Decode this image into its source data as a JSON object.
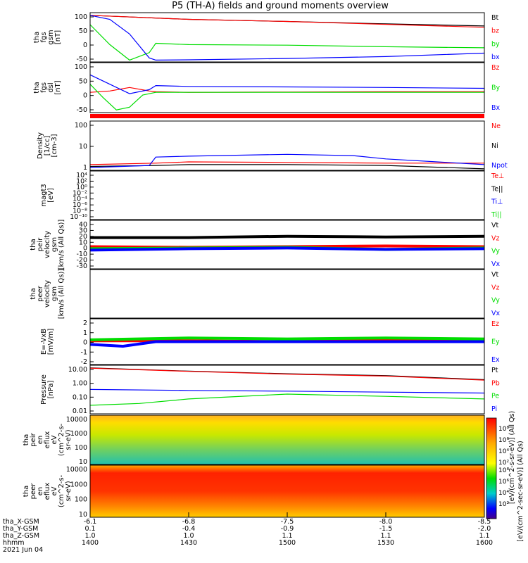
{
  "title": "P5 (TH-A) fields and ground moments overview",
  "colors": {
    "black": "#000000",
    "red": "#ff0000",
    "green": "#00dd00",
    "blue": "#0000ff"
  },
  "panels": [
    {
      "id": "fgs-gsm",
      "ylabel": [
        "tha",
        "fgs",
        "gsm",
        "[nT]"
      ],
      "yticks": [
        "100",
        "50",
        "0",
        "-50"
      ],
      "legend": [
        {
          "text": "Bt",
          "color": "black"
        },
        {
          "text": "bz",
          "color": "red"
        },
        {
          "text": "by",
          "color": "green"
        },
        {
          "text": "bx",
          "color": "blue"
        }
      ]
    },
    {
      "id": "fgs-dsl",
      "ylabel": [
        "tha",
        "fgs",
        "dsl",
        "[nT]"
      ],
      "yticks": [
        "100",
        "50",
        "0",
        "-50"
      ],
      "legend": [
        {
          "text": "Bz",
          "color": "red"
        },
        {
          "text": "By",
          "color": "green"
        },
        {
          "text": "Bx",
          "color": "blue"
        }
      ]
    },
    {
      "id": "density",
      "ylabel": [
        "Density",
        "[1/cc]",
        "[cm-3]"
      ],
      "yticks": [
        "100",
        "10",
        "1"
      ],
      "legend": [
        {
          "text": "Ne",
          "color": "red"
        },
        {
          "text": "Ni",
          "color": "black"
        },
        {
          "text": "Npot",
          "color": "blue"
        }
      ]
    },
    {
      "id": "temperature",
      "ylabel": [
        "magt3",
        "[eV]"
      ],
      "yticks": [
        "10⁴",
        "10²",
        "10⁰",
        "10⁻²",
        "10⁻⁴",
        "10⁻⁶",
        "10⁻⁸",
        "10⁻¹⁰"
      ],
      "legend": [
        {
          "text": "Te⊥",
          "color": "red"
        },
        {
          "text": "Te||",
          "color": "black"
        },
        {
          "text": "Ti⊥",
          "color": "blue"
        },
        {
          "text": "Ti||",
          "color": "green"
        }
      ]
    },
    {
      "id": "peir-velocity",
      "ylabel": [
        "tha",
        "peir",
        "velocity",
        "gsm",
        "[km/s (All Qs)]"
      ],
      "yticks": [
        "40",
        "30",
        "20",
        "10",
        "0",
        "-10",
        "-20",
        "-30"
      ],
      "legend": [
        {
          "text": "Vt",
          "color": "black"
        },
        {
          "text": "Vz",
          "color": "red"
        },
        {
          "text": "Vy",
          "color": "green"
        },
        {
          "text": "Vx",
          "color": "blue"
        }
      ]
    },
    {
      "id": "peer-velocity",
      "ylabel": [
        "tha",
        "peer",
        "velocity",
        "gsm",
        "[km/s (All Qs)]"
      ],
      "yticks": [],
      "legend": [
        {
          "text": "Vt",
          "color": "black"
        },
        {
          "text": "Vz",
          "color": "red"
        },
        {
          "text": "Vy",
          "color": "green"
        },
        {
          "text": "Vx",
          "color": "blue"
        }
      ]
    },
    {
      "id": "efield",
      "ylabel": [
        "E=-VxB",
        "[mV/m]"
      ],
      "yticks": [
        "2",
        "1",
        "0",
        "-1",
        "-2"
      ],
      "legend": [
        {
          "text": "Ez",
          "color": "red"
        },
        {
          "text": "Ey",
          "color": "green"
        },
        {
          "text": "Ex",
          "color": "blue"
        }
      ]
    },
    {
      "id": "pressure",
      "ylabel": [
        "Pressure",
        "[nPa]"
      ],
      "yticks": [
        "10.00",
        "1.00",
        "0.10",
        "0.01"
      ],
      "legend": [
        {
          "text": "Pt",
          "color": "black"
        },
        {
          "text": "Pb",
          "color": "red"
        },
        {
          "text": "Pe",
          "color": "green"
        },
        {
          "text": "Pi",
          "color": "blue"
        }
      ]
    },
    {
      "id": "peir-eflux",
      "ylabel": [
        "tha",
        "peir",
        "en",
        "eflux",
        "eV",
        "(cm^2-s-",
        "sr-eV)"
      ],
      "yticks": [
        "10000",
        "1000",
        "100",
        "10"
      ],
      "legend": []
    },
    {
      "id": "peer-eflux",
      "ylabel": [
        "tha",
        "peer",
        "en",
        "eflux",
        "eV",
        "(cm^2-s-",
        "sr-eV)"
      ],
      "yticks": [
        "10000",
        "1000",
        "100",
        "10"
      ],
      "legend": []
    }
  ],
  "colorbar": {
    "ticks": [
      "10⁸",
      "10⁶",
      "10⁴",
      "10²"
    ],
    "label_ion": "[eV/(cm^2-sec-sr-eV)] (All Qs)",
    "label_el": "[eV/(cm^2-s-sr-eV)] (All Qs)"
  },
  "footer": {
    "row_labels": [
      "tha_X-GSM",
      "tha_Y-GSM",
      "tha_Z-GSM",
      "hhmm",
      "2021 Jun 04"
    ],
    "columns": [
      {
        "x": "-6.1",
        "y": "0.1",
        "z": "1.0",
        "hhmm": "1400"
      },
      {
        "x": "-6.8",
        "y": "-0.4",
        "z": "1.0",
        "hhmm": "1430"
      },
      {
        "x": "-7.5",
        "y": "-0.9",
        "z": "1.1",
        "hhmm": "1500"
      },
      {
        "x": "-8.0",
        "y": "-1.5",
        "z": "1.1",
        "hhmm": "1530"
      },
      {
        "x": "-8.5",
        "y": "-2.0",
        "z": "1.1",
        "hhmm": "1600"
      }
    ]
  },
  "chart_data": {
    "type": "line",
    "title": "P5 (TH-A) fields and ground moments overview",
    "x": [
      "1400",
      "1430",
      "1500",
      "1530",
      "1600"
    ],
    "series": [
      {
        "name": "Bt",
        "panel": "fgs-gsm",
        "x": [
          1400,
          1410,
          1420,
          1430,
          1500,
          1530,
          1600
        ],
        "values": [
          100,
          95,
          90,
          85,
          77,
          68,
          60
        ],
        "ylim": [
          -75,
          110
        ]
      },
      {
        "name": "bz",
        "panel": "fgs-gsm",
        "x": [
          1400,
          1410,
          1420,
          1430,
          1500,
          1530,
          1600
        ],
        "values": [
          100,
          95,
          90,
          85,
          77,
          66,
          55
        ],
        "ylim": [
          -75,
          110
        ]
      },
      {
        "name": "by",
        "panel": "fgs-gsm",
        "x": [
          1400,
          1406,
          1412,
          1418,
          1420,
          1430,
          1500,
          1530,
          1600
        ],
        "values": [
          65,
          -10,
          -68,
          -40,
          -5,
          -10,
          -12,
          -18,
          -22
        ],
        "ylim": [
          -75,
          110
        ]
      },
      {
        "name": "bx",
        "panel": "fgs-gsm",
        "x": [
          1400,
          1406,
          1412,
          1418,
          1420,
          1430,
          1500,
          1530,
          1600
        ],
        "values": [
          100,
          85,
          30,
          -60,
          -68,
          -67,
          -62,
          -55,
          -42
        ],
        "ylim": [
          -75,
          110
        ]
      },
      {
        "name": "Bz",
        "panel": "fgs-dsl",
        "x": [
          1400,
          1406,
          1412,
          1418,
          1420,
          1430,
          1500,
          1530,
          1600
        ],
        "values": [
          0,
          5,
          18,
          5,
          2,
          0,
          1,
          2,
          2
        ],
        "ylim": [
          -75,
          110
        ]
      },
      {
        "name": "By",
        "panel": "fgs-dsl",
        "x": [
          1400,
          1404,
          1408,
          1412,
          1416,
          1420,
          1430,
          1600
        ],
        "values": [
          30,
          -20,
          -65,
          -55,
          -10,
          0,
          0,
          0
        ],
        "ylim": [
          -75,
          110
        ]
      },
      {
        "name": "Bx",
        "panel": "fgs-dsl",
        "x": [
          1400,
          1406,
          1412,
          1418,
          1420,
          1430,
          1500,
          1530,
          1600
        ],
        "values": [
          65,
          30,
          -5,
          10,
          25,
          22,
          20,
          18,
          15
        ],
        "ylim": [
          -75,
          110
        ]
      },
      {
        "name": "Ne",
        "panel": "density",
        "x": [
          1400,
          1420,
          1430,
          1500,
          1530,
          1600
        ],
        "values": [
          1,
          1.2,
          1.4,
          1.3,
          1.2,
          1.2
        ],
        "ylim": [
          0.5,
          200
        ],
        "log": true
      },
      {
        "name": "Ni",
        "panel": "density",
        "x": [
          1400,
          1420,
          1430,
          1500,
          1530,
          1600
        ],
        "values": [
          0.8,
          0.9,
          1.0,
          1.0,
          0.9,
          0.6
        ],
        "ylim": [
          0.5,
          200
        ],
        "log": true
      },
      {
        "name": "Npot",
        "panel": "density",
        "x": [
          1400,
          1418,
          1420,
          1430,
          1500,
          1520,
          1530,
          1600
        ],
        "values": [
          0.7,
          0.9,
          2.5,
          2.8,
          3.5,
          3.0,
          2.0,
          1.0
        ],
        "ylim": [
          0.5,
          200
        ],
        "log": true
      },
      {
        "name": "Vt",
        "panel": "peir-velocity",
        "x": [
          1400,
          1430,
          1500,
          1530,
          1600
        ],
        "values": [
          15,
          15,
          17,
          16,
          17
        ],
        "ylim": [
          -30,
          40
        ]
      },
      {
        "name": "Vz",
        "panel": "peir-velocity",
        "x": [
          1400,
          1430,
          1500,
          1530,
          1600
        ],
        "values": [
          2,
          1,
          2,
          3,
          2
        ],
        "ylim": [
          -30,
          40
        ]
      },
      {
        "name": "Vy",
        "panel": "peir-velocity",
        "x": [
          1400,
          1430,
          1500,
          1530,
          1600
        ],
        "values": [
          -1,
          0,
          1,
          -2,
          0
        ],
        "ylim": [
          -30,
          40
        ]
      },
      {
        "name": "Vx",
        "panel": "peir-velocity",
        "x": [
          1400,
          1430,
          1500,
          1530,
          1600
        ],
        "values": [
          -3,
          -1,
          0,
          -2,
          -1
        ],
        "ylim": [
          -30,
          40
        ]
      },
      {
        "name": "Ez",
        "panel": "efield",
        "x": [
          1400,
          1430,
          1500,
          1530,
          1600
        ],
        "values": [
          0.1,
          0.1,
          0.0,
          0.2,
          0.1
        ],
        "ylim": [
          -2.5,
          2.5
        ]
      },
      {
        "name": "Ey",
        "panel": "efield",
        "x": [
          1400,
          1430,
          1500,
          1530,
          1600
        ],
        "values": [
          0.2,
          0.4,
          0.3,
          0.4,
          0.3
        ],
        "ylim": [
          -2.5,
          2.5
        ]
      },
      {
        "name": "Ex",
        "panel": "efield",
        "x": [
          1400,
          1410,
          1420,
          1430,
          1600
        ],
        "values": [
          -0.3,
          -0.5,
          0.0,
          0.0,
          0.0
        ],
        "ylim": [
          -2.5,
          2.5
        ]
      },
      {
        "name": "Pt",
        "panel": "pressure",
        "x": [
          1400,
          1430,
          1500,
          1530,
          1600
        ],
        "values": [
          10,
          6,
          4,
          3,
          1.6
        ],
        "ylim": [
          0.008,
          15
        ],
        "log": true
      },
      {
        "name": "Pb",
        "panel": "pressure",
        "x": [
          1400,
          1430,
          1500,
          1530,
          1600
        ],
        "values": [
          9.5,
          5.8,
          3.8,
          2.8,
          1.5
        ],
        "ylim": [
          0.008,
          15
        ],
        "log": true
      },
      {
        "name": "Pe",
        "panel": "pressure",
        "x": [
          1400,
          1415,
          1430,
          1500,
          1530,
          1600
        ],
        "values": [
          0.03,
          0.04,
          0.08,
          0.17,
          0.12,
          0.08
        ],
        "ylim": [
          0.008,
          15
        ],
        "log": true
      },
      {
        "name": "Pi",
        "panel": "pressure",
        "x": [
          1400,
          1430,
          1500,
          1530,
          1600
        ],
        "values": [
          0.35,
          0.3,
          0.27,
          0.23,
          0.2
        ],
        "ylim": [
          0.008,
          15
        ],
        "log": true
      }
    ],
    "spectrograms": [
      {
        "panel": "peir-eflux",
        "ylim": [
          7,
          15000
        ],
        "log": true
      },
      {
        "panel": "peer-eflux",
        "ylim": [
          7,
          15000
        ],
        "log": true
      }
    ]
  }
}
